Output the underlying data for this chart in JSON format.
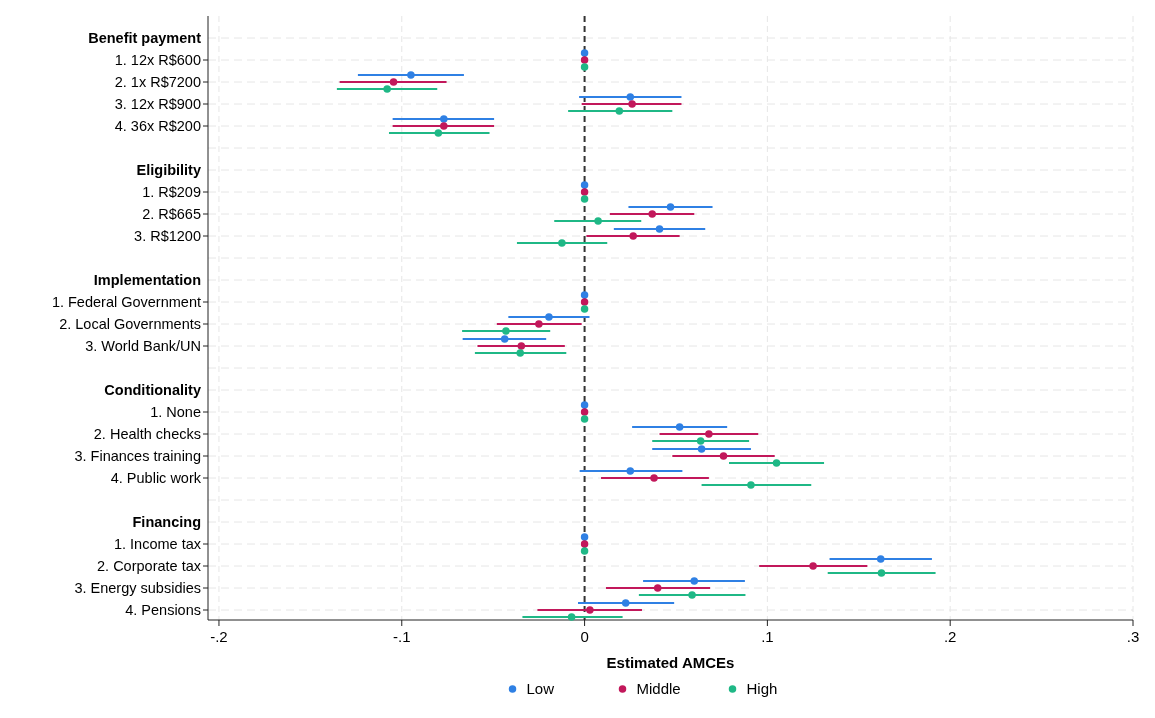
{
  "chart_data": {
    "type": "scatter",
    "orientation": "horizontal",
    "xlabel": "Estimated AMCEs",
    "categories": [
      "Benefit payment",
      "1. 12x R$600",
      "2. 1x R$7200",
      "3. 12x R$900",
      "4. 36x R$200",
      null,
      "Eligibility",
      "1. R$209",
      "2. R$665",
      "3. R$1200",
      null,
      "Implementation",
      "1. Federal Government",
      "2. Local Governments",
      "3. World Bank/UN",
      null,
      "Conditionality",
      "1. None",
      "2. Health checks",
      "3. Finances training",
      "4. Public work",
      null,
      "Financing",
      "1. Income tax",
      "2. Corporate tax",
      "3. Energy subsidies",
      "4. Pensions"
    ],
    "series": [
      {
        "name": "Low",
        "color": "#2f80e4",
        "values": [
          null,
          0,
          -0.095,
          0.025,
          -0.077,
          null,
          null,
          0,
          0.047,
          0.041,
          null,
          null,
          0,
          -0.0195,
          -0.0437,
          null,
          null,
          0,
          0.052,
          0.064,
          0.025,
          null,
          null,
          0,
          0.162,
          0.06,
          0.0225
        ],
        "errors": [
          null,
          null,
          [
            -0.124,
            -0.066
          ],
          [
            -0.003,
            0.053
          ],
          [
            -0.105,
            -0.0495
          ],
          null,
          null,
          null,
          [
            0.024,
            0.07
          ],
          [
            0.016,
            0.066
          ],
          null,
          null,
          null,
          [
            -0.0417,
            0.0027
          ],
          [
            -0.0667,
            -0.021
          ],
          null,
          null,
          null,
          [
            0.026,
            0.078
          ],
          [
            0.037,
            0.091
          ],
          [
            -0.0027,
            0.0535
          ],
          null,
          null,
          null,
          [
            0.134,
            0.19
          ],
          [
            0.032,
            0.0877
          ],
          [
            -0.0036,
            0.049
          ]
        ]
      },
      {
        "name": "Middle",
        "color": "#c2185b",
        "values": [
          null,
          0,
          -0.1045,
          0.026,
          -0.077,
          null,
          null,
          0,
          0.037,
          0.0266,
          null,
          null,
          0,
          -0.025,
          -0.0346,
          null,
          null,
          0,
          0.068,
          0.076,
          0.038,
          null,
          null,
          0,
          0.125,
          0.04,
          0.0029
        ],
        "errors": [
          null,
          null,
          [
            -0.134,
            -0.0755
          ],
          [
            -0.0016,
            0.053
          ],
          [
            -0.105,
            -0.0495
          ],
          null,
          null,
          null,
          [
            0.0138,
            0.06
          ],
          [
            0.001,
            0.052
          ],
          null,
          null,
          null,
          [
            -0.048,
            -0.0016
          ],
          [
            -0.0586,
            -0.0108
          ],
          null,
          null,
          null,
          [
            0.041,
            0.095
          ],
          [
            0.048,
            0.104
          ],
          [
            0.009,
            0.068
          ],
          null,
          null,
          null,
          [
            0.0955,
            0.1547
          ],
          [
            0.0117,
            0.0687
          ],
          [
            -0.0258,
            0.0314
          ]
        ]
      },
      {
        "name": "High",
        "color": "#1fb886",
        "values": [
          null,
          0,
          -0.108,
          0.019,
          -0.08,
          null,
          null,
          0,
          0.0074,
          -0.0124,
          null,
          null,
          0,
          -0.043,
          -0.0352,
          null,
          null,
          0,
          0.0635,
          0.105,
          0.091,
          null,
          null,
          0,
          0.1624,
          0.0588,
          -0.0071
        ],
        "errors": [
          null,
          null,
          [
            -0.1355,
            -0.0806
          ],
          [
            -0.009,
            0.048
          ],
          [
            -0.107,
            -0.052
          ],
          null,
          null,
          null,
          [
            -0.0166,
            0.031
          ],
          [
            -0.037,
            0.0124
          ],
          null,
          null,
          null,
          [
            -0.067,
            -0.0188
          ],
          [
            -0.06,
            -0.01
          ],
          null,
          null,
          null,
          [
            0.037,
            0.09
          ],
          [
            0.079,
            0.131
          ],
          [
            0.064,
            0.124
          ],
          null,
          null,
          null,
          [
            0.133,
            0.192
          ],
          [
            0.0297,
            0.088
          ],
          [
            -0.034,
            0.0208
          ]
        ]
      }
    ],
    "xlim": [
      -0.206,
      0.3
    ],
    "xticks": [
      {
        "value": -0.2,
        "label": "-.2"
      },
      {
        "value": -0.1,
        "label": "-.1"
      },
      0,
      {
        "value": 0.1,
        "label": ".1"
      },
      {
        "value": 0.2,
        "label": ".2"
      },
      {
        "value": 0.3,
        "label": ".3"
      }
    ],
    "ref_lines": [
      {
        "axis": "x",
        "value": 0,
        "color": "#333333",
        "line_style": "dashed"
      }
    ],
    "grid": true,
    "legend": "bottom",
    "marker": "circle"
  }
}
